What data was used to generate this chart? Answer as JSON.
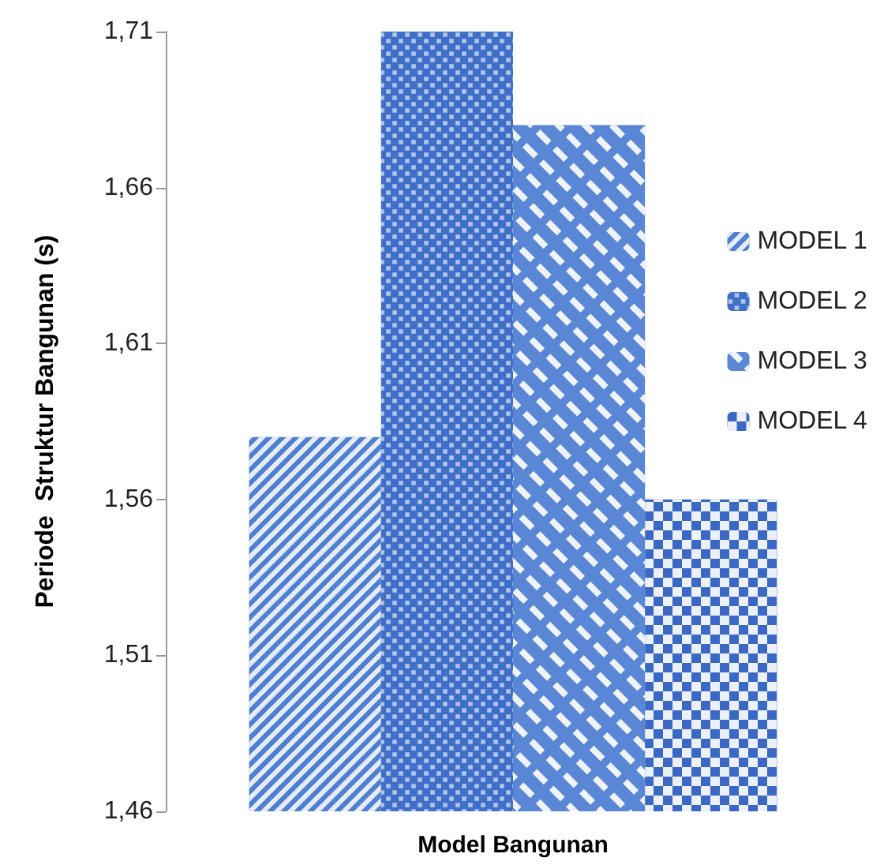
{
  "chart_data": {
    "type": "bar",
    "xlabel": "Model Bangunan",
    "ylabel": "Periode  Struktur Bangunan (s)",
    "categories": [
      null
    ],
    "series": [
      {
        "name": "MODEL 1",
        "color": "#4f7fd0",
        "values": [
          1.58
        ]
      },
      {
        "name": "MODEL 2",
        "color": "#3f6fc8",
        "values": [
          1.71
        ]
      },
      {
        "name": "MODEL 3",
        "color": "#5a86d6",
        "values": [
          1.68
        ]
      },
      {
        "name": "MODEL 4",
        "color": "#3a68c4",
        "values": [
          1.56
        ]
      }
    ],
    "ylim": [
      1.46,
      1.71
    ],
    "yticks": [
      {
        "value": 1.46,
        "label": "1,46"
      },
      {
        "value": 1.51,
        "label": "1,51"
      },
      {
        "value": 1.56,
        "label": "1,56"
      },
      {
        "value": 1.61,
        "label": "1,61"
      },
      {
        "value": 1.66,
        "label": "1,66"
      },
      {
        "value": 1.71,
        "label": "1,71"
      }
    ],
    "grid": false,
    "legend": "right"
  }
}
